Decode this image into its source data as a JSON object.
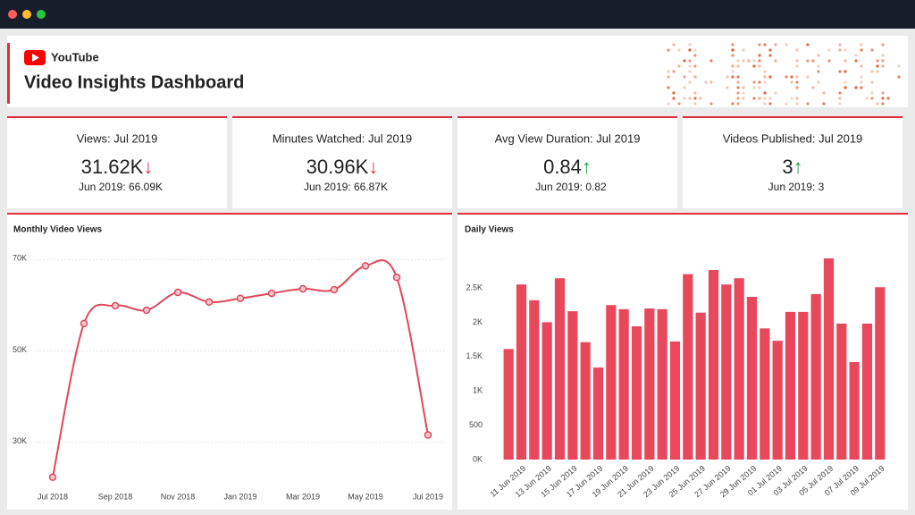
{
  "header": {
    "brand": "YouTube",
    "title": "Video Insights Dashboard"
  },
  "kpis": [
    {
      "title": "Views: Jul 2019",
      "value": "31.62K",
      "arrow": "↓",
      "previous": "Jun 2019: 66.09K"
    },
    {
      "title": "Minutes Watched: Jul 2019",
      "value": "30.96K",
      "arrow": "↓",
      "previous": "Jun 2019: 66.87K"
    },
    {
      "title": "Avg View Duration: Jul 2019",
      "value": "0.84",
      "arrow": "↑",
      "previous": "Jun 2019: 0.82"
    },
    {
      "title": "Videos Published: Jul 2019",
      "value": "3",
      "arrow": "↑",
      "previous": "Jun 2019: 3"
    }
  ],
  "chart_data": [
    {
      "type": "line",
      "title": "Monthly Video Views",
      "color": "#e0475a",
      "categories": [
        "Jul 2018",
        null,
        "Sep 2018",
        null,
        "Nov 2018",
        null,
        "Jan 2019",
        null,
        "Mar 2019",
        null,
        "May 2019",
        null,
        "Jul 2019"
      ],
      "values": [
        22400,
        56000,
        59900,
        58900,
        62800,
        60700,
        61500,
        62600,
        63600,
        63400,
        68600,
        66090,
        31620
      ],
      "ylim": [
        20000,
        72000
      ],
      "yticks": [
        {
          "value": 30000,
          "label": "30K"
        },
        {
          "value": 50000,
          "label": "50K"
        },
        {
          "value": 70000,
          "label": "70K"
        }
      ],
      "grid": true
    },
    {
      "type": "bar",
      "title": "Daily Views",
      "color": "#e8475c",
      "categories": [
        null,
        "11 Jun 2019",
        null,
        "13 Jun 2019",
        null,
        "15 Jun 2019",
        null,
        "17 Jun 2019",
        null,
        "19 Jun 2019",
        null,
        "21 Jun 2019",
        null,
        "23 Jun 2019",
        null,
        "25 Jun 2019",
        null,
        "27 Jun 2019",
        null,
        "29 Jun 2019",
        null,
        "01 Jul 2019",
        null,
        "03 Jul 2019",
        null,
        "05 Jul 2019",
        null,
        "07 Jul 2019",
        null,
        "09 Jul 2019"
      ],
      "values": [
        1610,
        2550,
        2320,
        2000,
        2640,
        2160,
        1710,
        1340,
        2250,
        2190,
        1940,
        2200,
        2190,
        1720,
        2700,
        2140,
        2760,
        2550,
        2640,
        2370,
        1910,
        1730,
        2150,
        2150,
        2410,
        2930,
        1980,
        1420,
        1980,
        2510
      ],
      "ylim": [
        0,
        3000
      ],
      "yticks": [
        {
          "value": 0,
          "label": "0K"
        },
        500,
        {
          "value": 1000,
          "label": "1K"
        },
        {
          "value": 1500,
          "label": "1.5K"
        },
        {
          "value": 2000,
          "label": "2K"
        },
        {
          "value": 2500,
          "label": "2.5K"
        }
      ],
      "grid": false
    }
  ]
}
